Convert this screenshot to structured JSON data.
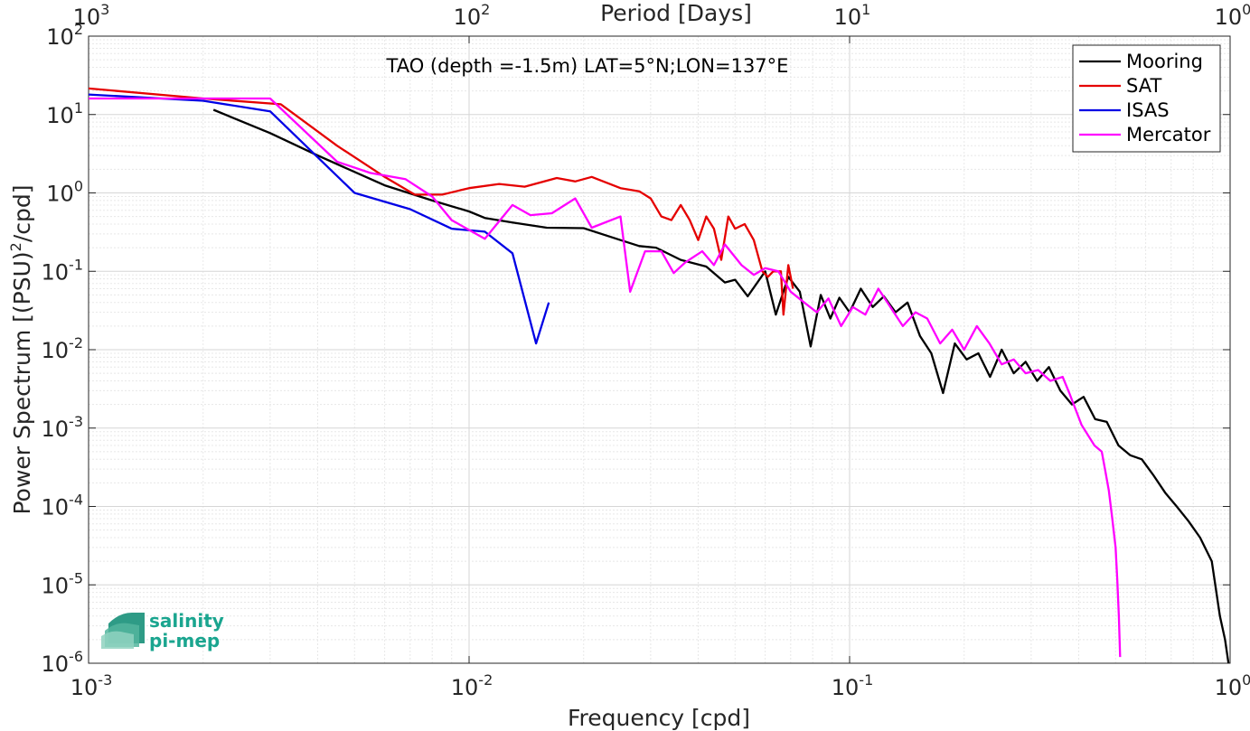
{
  "chart_data": {
    "type": "line",
    "title": "TAO (depth =-1.5m) LAT=5°N;LON=137°E",
    "xlabel": "Frequency [cpd]",
    "ylabel": "Power Spectrum [(PSU)²/cpd]",
    "top_xlabel": "Period [Days]",
    "xscale": "log",
    "yscale": "log",
    "xlim": [
      0.001,
      1
    ],
    "ylim": [
      1e-06,
      100
    ],
    "grid": true,
    "legend_position": "top-right",
    "x_ticks": [
      {
        "base": "10",
        "exp": "-3"
      },
      {
        "base": "10",
        "exp": "-2"
      },
      {
        "base": "10",
        "exp": "-1"
      },
      {
        "base": "10",
        "exp": "0"
      }
    ],
    "top_ticks": [
      {
        "base": "10",
        "exp": "3"
      },
      {
        "base": "10",
        "exp": "2"
      },
      {
        "base": "10",
        "exp": "1"
      },
      {
        "base": "10",
        "exp": "0"
      }
    ],
    "y_ticks": [
      {
        "base": "10",
        "exp": "2"
      },
      {
        "base": "10",
        "exp": "1"
      },
      {
        "base": "10",
        "exp": "0"
      },
      {
        "base": "10",
        "exp": "-1"
      },
      {
        "base": "10",
        "exp": "-2"
      },
      {
        "base": "10",
        "exp": "-3"
      },
      {
        "base": "10",
        "exp": "-4"
      },
      {
        "base": "10",
        "exp": "-5"
      },
      {
        "base": "10",
        "exp": "-6"
      }
    ],
    "series": [
      {
        "name": "Mooring",
        "color": "#000000",
        "points": [
          [
            0.00213,
            11.5
          ],
          [
            0.003,
            5.8
          ],
          [
            0.004,
            3.0
          ],
          [
            0.006,
            1.25
          ],
          [
            0.008,
            0.8
          ],
          [
            0.01,
            0.58
          ],
          [
            0.011,
            0.48
          ],
          [
            0.013,
            0.42
          ],
          [
            0.016,
            0.36
          ],
          [
            0.02,
            0.355
          ],
          [
            0.025,
            0.25
          ],
          [
            0.028,
            0.21
          ],
          [
            0.031,
            0.2
          ],
          [
            0.036,
            0.14
          ],
          [
            0.042,
            0.115
          ],
          [
            0.047,
            0.072
          ],
          [
            0.05,
            0.078
          ],
          [
            0.054,
            0.048
          ],
          [
            0.06,
            0.1
          ],
          [
            0.064,
            0.028
          ],
          [
            0.069,
            0.085
          ],
          [
            0.074,
            0.055
          ],
          [
            0.079,
            0.011
          ],
          [
            0.084,
            0.05
          ],
          [
            0.089,
            0.025
          ],
          [
            0.094,
            0.046
          ],
          [
            0.1,
            0.03
          ],
          [
            0.107,
            0.06
          ],
          [
            0.115,
            0.035
          ],
          [
            0.123,
            0.048
          ],
          [
            0.132,
            0.03
          ],
          [
            0.142,
            0.04
          ],
          [
            0.153,
            0.015
          ],
          [
            0.164,
            0.009
          ],
          [
            0.176,
            0.0028
          ],
          [
            0.189,
            0.012
          ],
          [
            0.203,
            0.0075
          ],
          [
            0.218,
            0.009
          ],
          [
            0.234,
            0.0045
          ],
          [
            0.251,
            0.01
          ],
          [
            0.27,
            0.005
          ],
          [
            0.29,
            0.007
          ],
          [
            0.311,
            0.004
          ],
          [
            0.334,
            0.006
          ],
          [
            0.358,
            0.003
          ],
          [
            0.384,
            0.002
          ],
          [
            0.412,
            0.0025
          ],
          [
            0.442,
            0.0013
          ],
          [
            0.474,
            0.0012
          ],
          [
            0.509,
            0.0006
          ],
          [
            0.546,
            0.00045
          ],
          [
            0.586,
            0.0004
          ],
          [
            0.629,
            0.00025
          ],
          [
            0.675,
            0.00015
          ],
          [
            0.724,
            0.0001
          ],
          [
            0.777,
            6.5e-05
          ],
          [
            0.834,
            4e-05
          ],
          [
            0.895,
            2e-05
          ],
          [
            0.94,
            4e-06
          ],
          [
            0.97,
            2e-06
          ],
          [
            0.99,
            1e-06
          ]
        ]
      },
      {
        "name": "SAT",
        "color": "#e50000",
        "points": [
          [
            0.001,
            21.5
          ],
          [
            0.002,
            16.0
          ],
          [
            0.0032,
            13.5
          ],
          [
            0.0045,
            4.0
          ],
          [
            0.006,
            1.6
          ],
          [
            0.0072,
            0.95
          ],
          [
            0.0085,
            0.95
          ],
          [
            0.01,
            1.15
          ],
          [
            0.012,
            1.3
          ],
          [
            0.014,
            1.2
          ],
          [
            0.017,
            1.55
          ],
          [
            0.019,
            1.4
          ],
          [
            0.021,
            1.6
          ],
          [
            0.025,
            1.15
          ],
          [
            0.028,
            1.05
          ],
          [
            0.03,
            0.85
          ],
          [
            0.032,
            0.5
          ],
          [
            0.034,
            0.45
          ],
          [
            0.036,
            0.7
          ],
          [
            0.038,
            0.45
          ],
          [
            0.04,
            0.25
          ],
          [
            0.042,
            0.5
          ],
          [
            0.044,
            0.35
          ],
          [
            0.046,
            0.14
          ],
          [
            0.048,
            0.5
          ],
          [
            0.05,
            0.35
          ],
          [
            0.053,
            0.4
          ],
          [
            0.056,
            0.25
          ],
          [
            0.059,
            0.1
          ],
          [
            0.061,
            0.085
          ],
          [
            0.063,
            0.1
          ],
          [
            0.066,
            0.1
          ],
          [
            0.067,
            0.028
          ],
          [
            0.069,
            0.12
          ],
          [
            0.071,
            0.06
          ]
        ]
      },
      {
        "name": "ISAS",
        "color": "#0000e5",
        "points": [
          [
            0.001,
            18.0
          ],
          [
            0.002,
            15.0
          ],
          [
            0.003,
            11.0
          ],
          [
            0.005,
            1.0
          ],
          [
            0.007,
            0.62
          ],
          [
            0.009,
            0.35
          ],
          [
            0.011,
            0.32
          ],
          [
            0.013,
            0.17
          ],
          [
            0.015,
            0.012
          ],
          [
            0.0162,
            0.04
          ]
        ]
      },
      {
        "name": "Mercator",
        "color": "#ff00ff",
        "points": [
          [
            0.001,
            16.0
          ],
          [
            0.003,
            16.0
          ],
          [
            0.0045,
            2.5
          ],
          [
            0.0055,
            1.8
          ],
          [
            0.0068,
            1.5
          ],
          [
            0.008,
            0.9
          ],
          [
            0.009,
            0.45
          ],
          [
            0.011,
            0.26
          ],
          [
            0.013,
            0.7
          ],
          [
            0.0145,
            0.52
          ],
          [
            0.0165,
            0.55
          ],
          [
            0.019,
            0.85
          ],
          [
            0.021,
            0.36
          ],
          [
            0.025,
            0.5
          ],
          [
            0.0265,
            0.055
          ],
          [
            0.029,
            0.18
          ],
          [
            0.032,
            0.18
          ],
          [
            0.0345,
            0.095
          ],
          [
            0.037,
            0.13
          ],
          [
            0.041,
            0.18
          ],
          [
            0.044,
            0.12
          ],
          [
            0.047,
            0.22
          ],
          [
            0.052,
            0.12
          ],
          [
            0.056,
            0.09
          ],
          [
            0.06,
            0.11
          ],
          [
            0.065,
            0.1
          ],
          [
            0.07,
            0.055
          ],
          [
            0.076,
            0.04
          ],
          [
            0.082,
            0.03
          ],
          [
            0.088,
            0.045
          ],
          [
            0.095,
            0.02
          ],
          [
            0.102,
            0.035
          ],
          [
            0.11,
            0.028
          ],
          [
            0.119,
            0.06
          ],
          [
            0.128,
            0.035
          ],
          [
            0.138,
            0.02
          ],
          [
            0.149,
            0.03
          ],
          [
            0.16,
            0.025
          ],
          [
            0.173,
            0.012
          ],
          [
            0.186,
            0.018
          ],
          [
            0.2,
            0.01
          ],
          [
            0.216,
            0.02
          ],
          [
            0.233,
            0.012
          ],
          [
            0.251,
            0.0065
          ],
          [
            0.27,
            0.0075
          ],
          [
            0.29,
            0.005
          ],
          [
            0.313,
            0.0055
          ],
          [
            0.337,
            0.004
          ],
          [
            0.363,
            0.0045
          ],
          [
            0.378,
            0.0028
          ],
          [
            0.407,
            0.0011
          ],
          [
            0.44,
            0.0006
          ],
          [
            0.46,
            0.0005
          ],
          [
            0.47,
            0.00028
          ],
          [
            0.48,
            0.00016
          ],
          [
            0.49,
            7e-05
          ],
          [
            0.5,
            3e-05
          ],
          [
            0.505,
            1.2e-05
          ],
          [
            0.51,
            4e-06
          ],
          [
            0.514,
            1.2e-06
          ]
        ]
      }
    ]
  },
  "logo": {
    "line1": "salinity",
    "line2": "pi-mep"
  }
}
